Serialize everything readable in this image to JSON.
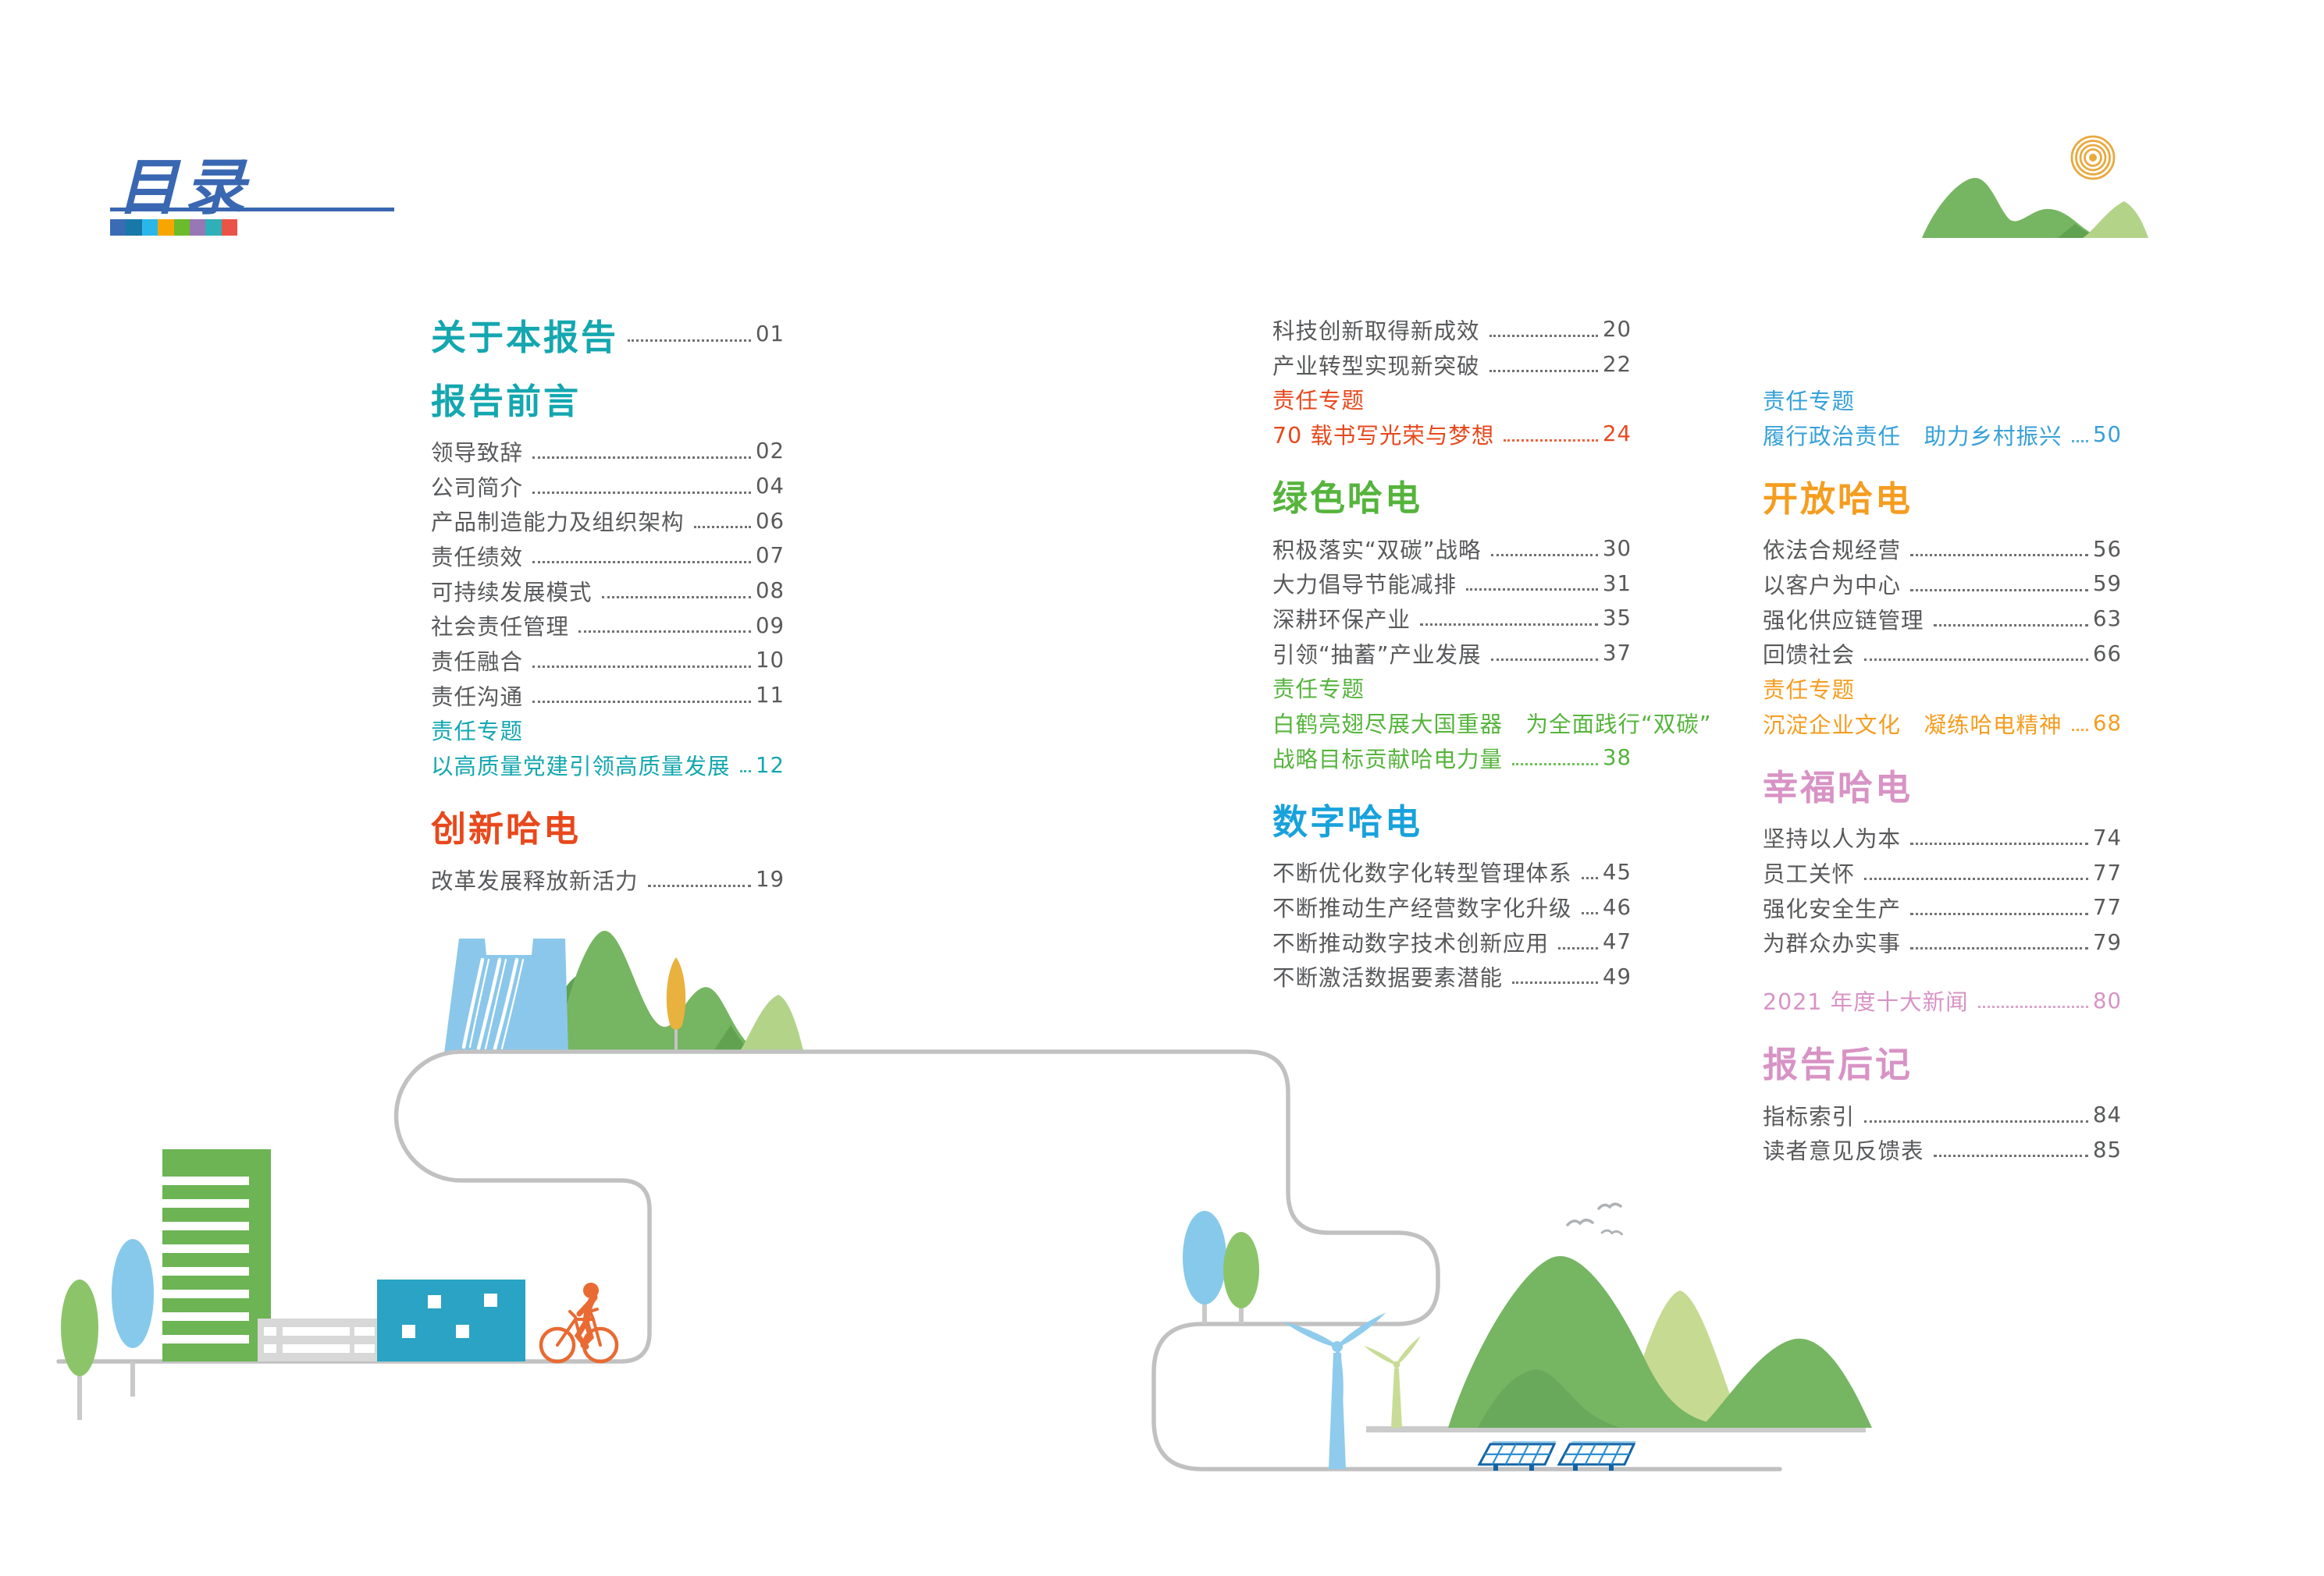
{
  "header": {
    "title": "目录",
    "accent_color": "#3A67B2",
    "palette": [
      "#3A6BB4",
      "#1879A8",
      "#29B7EA",
      "#F7A600",
      "#6CBB2A",
      "#9877B5",
      "#2FAFB7",
      "#EA5348"
    ]
  },
  "colors": {
    "body_text": "#58595B",
    "teal": "#14A7B0",
    "red": "#E8481C",
    "green": "#55B43C",
    "cyan": "#18A2DC",
    "blue": "#35A0D8",
    "orange": "#F59D20",
    "pink": "#D893C5",
    "road_gray": "#C1C1C1",
    "mountain_green": "#76B562",
    "mountain_light_green": "#B3D389",
    "dam_blue": "#8BC7EA",
    "cyclist_orange": "#E96A32",
    "sun_orange": "#E9A93E"
  },
  "toc": {
    "columns": [
      {
        "blocks": [
          {
            "type": "section_entry",
            "text": "关于本报告",
            "page": "01",
            "color": "teal"
          },
          {
            "type": "section",
            "text": "报告前言",
            "color": "teal"
          },
          {
            "type": "item",
            "text": "领导致辞",
            "page": "02",
            "color": "gray"
          },
          {
            "type": "item",
            "text": "公司简介",
            "page": "04",
            "color": "gray"
          },
          {
            "type": "item",
            "text": "产品制造能力及组织架构",
            "page": "06",
            "color": "gray"
          },
          {
            "type": "item",
            "text": "责任绩效",
            "page": "07",
            "color": "gray"
          },
          {
            "type": "item",
            "text": "可持续发展模式",
            "page": "08",
            "color": "gray"
          },
          {
            "type": "item",
            "text": "社会责任管理",
            "page": "09",
            "color": "gray"
          },
          {
            "type": "item",
            "text": "责任融合",
            "page": "10",
            "color": "gray"
          },
          {
            "type": "item",
            "text": "责任沟通",
            "page": "11",
            "color": "gray"
          },
          {
            "type": "label",
            "text": "责任专题",
            "color": "teal"
          },
          {
            "type": "item",
            "text": "以高质量党建引领高质量发展",
            "page": "12",
            "color": "teal"
          },
          {
            "type": "section",
            "text": "创新哈电",
            "color": "red"
          },
          {
            "type": "item",
            "text": "改革发展释放新活力",
            "page": "19",
            "color": "gray"
          }
        ]
      },
      {
        "blocks": [
          {
            "type": "item",
            "text": "科技创新取得新成效",
            "page": "20",
            "color": "gray"
          },
          {
            "type": "item",
            "text": "产业转型实现新突破",
            "page": "22",
            "color": "gray"
          },
          {
            "type": "label",
            "text": "责任专题",
            "color": "red"
          },
          {
            "type": "item",
            "text": "70 载书写光荣与梦想",
            "page": "24",
            "color": "red"
          },
          {
            "type": "section",
            "text": "绿色哈电",
            "color": "green"
          },
          {
            "type": "item",
            "text": "积极落实“双碳”战略",
            "page": "30",
            "color": "gray"
          },
          {
            "type": "item",
            "text": "大力倡导节能减排",
            "page": "31",
            "color": "gray"
          },
          {
            "type": "item",
            "text": "深耕环保产业",
            "page": "35",
            "color": "gray"
          },
          {
            "type": "item",
            "text": "引领“抽蓄”产业发展",
            "page": "37",
            "color": "gray"
          },
          {
            "type": "label",
            "text": "责任专题",
            "color": "green"
          },
          {
            "type": "label",
            "text": "白鹤亮翅尽展大国重器　为全面践行“双碳”",
            "color": "green"
          },
          {
            "type": "item",
            "text": "战略目标贡献哈电力量",
            "page": "38",
            "color": "green"
          },
          {
            "type": "section",
            "text": "数字哈电",
            "color": "cyan"
          },
          {
            "type": "item",
            "text": "不断优化数字化转型管理体系",
            "page": "45",
            "color": "gray"
          },
          {
            "type": "item",
            "text": "不断推动生产经营数字化升级",
            "page": "46",
            "color": "gray"
          },
          {
            "type": "item",
            "text": "不断推动数字技术创新应用",
            "page": "47",
            "color": "gray"
          },
          {
            "type": "item",
            "text": "不断激活数据要素潜能",
            "page": "49",
            "color": "gray"
          }
        ]
      },
      {
        "blocks": [
          {
            "type": "label",
            "text": "责任专题",
            "color": "blue"
          },
          {
            "type": "item",
            "text": "履行政治责任　助力乡村振兴",
            "page": "50",
            "color": "blue"
          },
          {
            "type": "section",
            "text": "开放哈电",
            "color": "orange"
          },
          {
            "type": "item",
            "text": "依法合规经营",
            "page": "56",
            "color": "gray"
          },
          {
            "type": "item",
            "text": "以客户为中心",
            "page": "59",
            "color": "gray"
          },
          {
            "type": "item",
            "text": "强化供应链管理",
            "page": "63",
            "color": "gray"
          },
          {
            "type": "item",
            "text": "回馈社会",
            "page": "66",
            "color": "gray"
          },
          {
            "type": "label",
            "text": "责任专题",
            "color": "orange"
          },
          {
            "type": "item",
            "text": "沉淀企业文化　凝练哈电精神",
            "page": "68",
            "color": "orange"
          },
          {
            "type": "section",
            "text": "幸福哈电",
            "color": "pink"
          },
          {
            "type": "item",
            "text": "坚持以人为本",
            "page": "74",
            "color": "gray"
          },
          {
            "type": "item",
            "text": "员工关怀",
            "page": "77",
            "color": "gray"
          },
          {
            "type": "item",
            "text": "强化安全生产",
            "page": "77",
            "color": "gray"
          },
          {
            "type": "item",
            "text": "为群众办实事",
            "page": "79",
            "color": "gray"
          },
          {
            "type": "item",
            "text": "2021 年度十大新闻",
            "page": "80",
            "color": "pink",
            "gap": true
          },
          {
            "type": "section",
            "text": "报告后记",
            "color": "pink"
          },
          {
            "type": "item",
            "text": "指标索引",
            "page": "84",
            "color": "gray"
          },
          {
            "type": "item",
            "text": "读者意见反馈表",
            "page": "85",
            "color": "gray"
          }
        ]
      }
    ]
  }
}
